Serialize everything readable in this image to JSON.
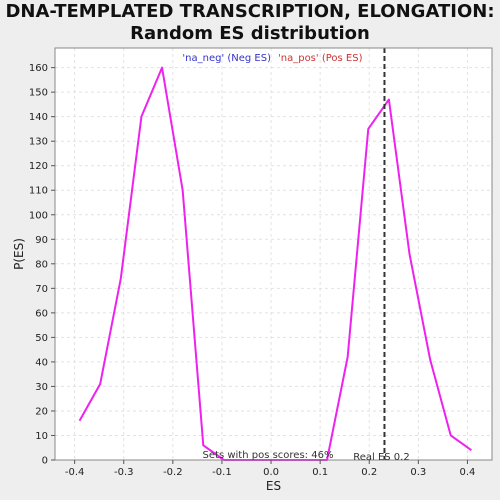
{
  "chart_data": {
    "type": "line",
    "title_line1": "DNA-TEMPLATED TRANSCRIPTION, ELONGATION:",
    "title_line2": "Random ES distribution",
    "xlabel": "ES",
    "ylabel": "P(ES)",
    "xlim": [
      -0.44,
      0.45
    ],
    "ylim": [
      0,
      168
    ],
    "x_ticks": [
      -0.4,
      -0.3,
      -0.2,
      -0.1,
      0.0,
      0.1,
      0.2,
      0.3,
      0.4
    ],
    "x_tick_labels": [
      "-0.4",
      "-0.3",
      "-0.2",
      "-0.1",
      "0.0",
      "0.1",
      "0.2",
      "0.3",
      "0.4"
    ],
    "y_ticks": [
      0,
      10,
      20,
      30,
      40,
      50,
      60,
      70,
      80,
      90,
      100,
      110,
      120,
      130,
      140,
      150,
      160
    ],
    "y_tick_labels": [
      "0",
      "10",
      "20",
      "30",
      "40",
      "50",
      "60",
      "70",
      "80",
      "90",
      "100",
      "110",
      "120",
      "130",
      "140",
      "150",
      "160"
    ],
    "grid": true,
    "legend": {
      "placement": "top-center",
      "neg_label": "'na_neg' (Neg ES)",
      "pos_label": "'na_pos' (Pos ES)",
      "neg_color": "#3333cc",
      "pos_color": "#cc3333"
    },
    "series": [
      {
        "color": "#ee22ee",
        "x": [
          -0.39,
          -0.348,
          -0.306,
          -0.264,
          -0.222,
          -0.18,
          -0.138,
          -0.096,
          -0.054,
          -0.012,
          0.03,
          0.072,
          0.114,
          0.156,
          0.198,
          0.24,
          0.282,
          0.324,
          0.366,
          0.408
        ],
        "y": [
          16,
          31,
          74,
          140,
          160,
          110,
          6,
          0,
          0,
          0,
          0,
          0,
          0,
          42,
          135,
          147,
          84,
          41,
          10,
          4
        ]
      }
    ],
    "real_es": 0.231,
    "real_es_label": "Real ES 0.2",
    "pos_scores_label": "Sets with pos scores: 46%"
  }
}
